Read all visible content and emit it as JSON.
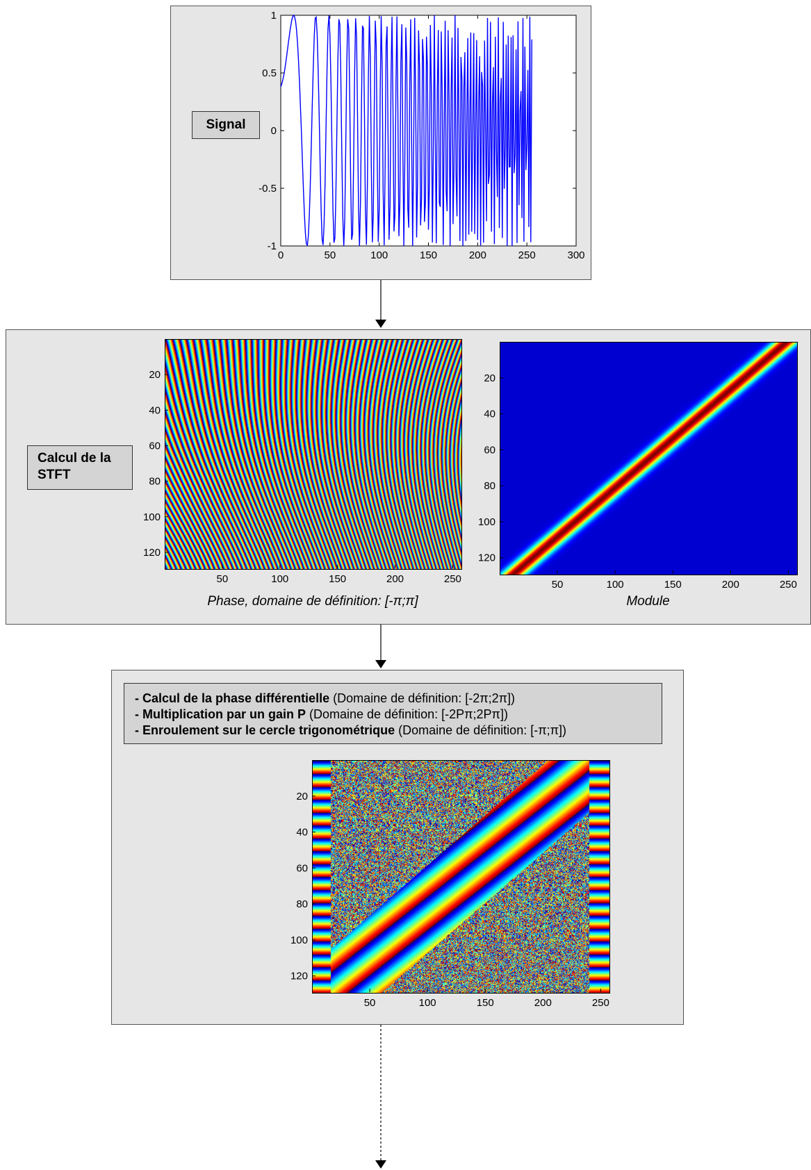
{
  "signal_panel": {
    "label": "Signal",
    "chart_data": {
      "type": "line",
      "xlim": [
        0,
        300
      ],
      "ylim": [
        -1,
        1
      ],
      "xticks": [
        "0",
        "50",
        "100",
        "150",
        "200",
        "250",
        "300"
      ],
      "yticks": [
        "1",
        "0.5",
        "0",
        "-0.5",
        "-1"
      ],
      "series_color": "#0000ff",
      "signal": {
        "samples": 256,
        "start_value": 0.38,
        "description_freq": "linear chirp"
      }
    }
  },
  "stft_panel": {
    "label_line1": "Calcul de la",
    "label_line2": "STFT",
    "phase_caption": "Phase, domaine de définition: [-π;π]",
    "module_caption": "Module",
    "xticks": [
      "50",
      "100",
      "150",
      "200",
      "250"
    ],
    "yticks": [
      "20",
      "40",
      "60",
      "80",
      "100",
      "120"
    ]
  },
  "diff_panel": {
    "steps": [
      {
        "bold": "- Calcul de la phase différentielle",
        "rest": " (Domaine de définition: [-2π;2π])"
      },
      {
        "bold": "- Multiplication par un gain P",
        "rest": " (Domaine de définition: [-2Pπ;2Pπ])"
      },
      {
        "bold": "- Enroulement sur le cercle trigonométrique",
        "rest": " (Domaine de définition: [-π;π])"
      }
    ],
    "xticks": [
      "50",
      "100",
      "150",
      "200",
      "250"
    ],
    "yticks": [
      "20",
      "40",
      "60",
      "80",
      "100",
      "120"
    ]
  },
  "colors": {
    "colormap": "jet",
    "panel_bg": "#e6e6e6",
    "box_bg": "#d4d4d4",
    "line": "#0000ff"
  }
}
